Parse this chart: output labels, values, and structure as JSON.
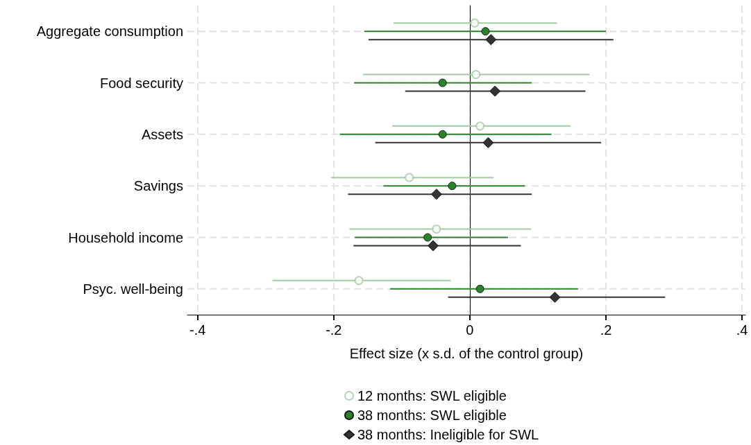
{
  "chart_data": {
    "type": "scatter",
    "orientation": "horizontal",
    "xlabel": "Effect size (x s.d. of the control group)",
    "categories": [
      "Aggregate consumption",
      "Food security",
      "Assets",
      "Savings",
      "Household income",
      "Psyc. well-being"
    ],
    "xlim": [
      -0.415,
      0.405
    ],
    "xticks": [
      {
        "value": -0.4,
        "label": "-.4"
      },
      {
        "value": -0.2,
        "label": "-.2"
      },
      0,
      {
        "value": 0.2,
        "label": ".2"
      },
      {
        "value": 0.4,
        "label": ".4"
      }
    ],
    "grid": true,
    "legend": "bottom",
    "series": [
      {
        "name": "12 months: SWL eligible",
        "color": "#a3cba3",
        "marker": "circle",
        "values": [
          0.007,
          0.009,
          0.015,
          -0.089,
          -0.049,
          -0.163
        ],
        "errors": [
          [
            -0.112,
            0.128
          ],
          [
            -0.157,
            0.176
          ],
          [
            -0.114,
            0.148
          ],
          [
            -0.204,
            0.035
          ],
          [
            -0.177,
            0.09
          ],
          [
            -0.29,
            -0.028
          ]
        ]
      },
      {
        "name": "38 months: SWL eligible",
        "color": "#2a832a",
        "marker": "circle",
        "values": [
          0.023,
          -0.04,
          -0.04,
          -0.026,
          -0.062,
          0.015
        ],
        "errors": [
          [
            -0.155,
            0.2
          ],
          [
            -0.17,
            0.091
          ],
          [
            -0.191,
            0.12
          ],
          [
            -0.127,
            0.081
          ],
          [
            -0.169,
            0.056
          ],
          [
            -0.117,
            0.159
          ]
        ]
      },
      {
        "name": "38 months: Ineligible for SWL",
        "color": "#333333",
        "marker": "diamond",
        "values": [
          0.031,
          0.037,
          0.027,
          -0.049,
          -0.054,
          0.125
        ],
        "errors": [
          [
            -0.149,
            0.211
          ],
          [
            -0.095,
            0.17
          ],
          [
            -0.139,
            0.193
          ],
          [
            -0.179,
            0.091
          ],
          [
            -0.171,
            0.075
          ],
          [
            -0.032,
            0.287
          ]
        ]
      }
    ]
  }
}
